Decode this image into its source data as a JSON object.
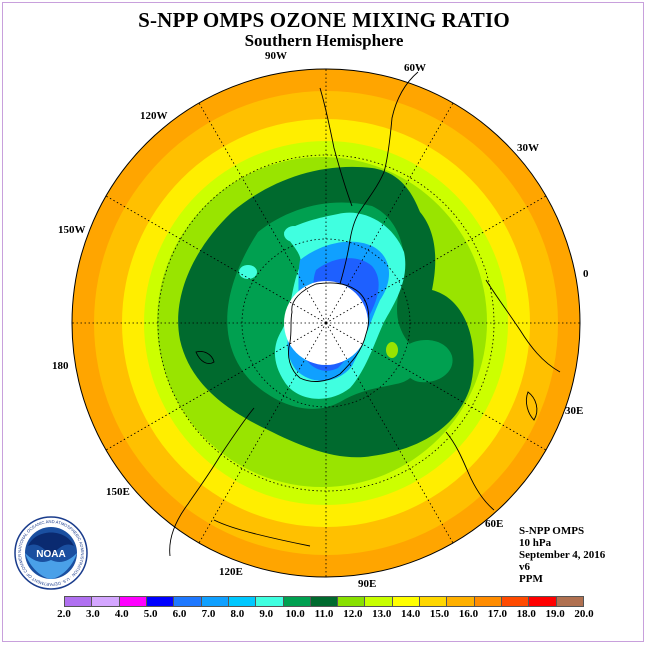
{
  "title": "S-NPP OMPS OZONE MIXING RATIO",
  "subtitle": "Southern Hemisphere",
  "longitude_labels": [
    "90W",
    "60W",
    "30W",
    "0",
    "30E",
    "60E",
    "90E",
    "120E",
    "150E",
    "180",
    "150W",
    "120W"
  ],
  "info": {
    "instrument": "S-NPP OMPS",
    "level": "10 hPa",
    "date": "September 4, 2016",
    "version": "v6",
    "units": "PPM"
  },
  "logo": {
    "text": "NOAA",
    "ring_text": "NATIONAL OCEANIC AND ATMOSPHERIC ADMINISTRATION · U.S. DEPARTMENT OF COMMERCE"
  },
  "colorbar": {
    "ticks": [
      "2.0",
      "3.0",
      "4.0",
      "5.0",
      "6.0",
      "7.0",
      "8.0",
      "9.0",
      "10.0",
      "11.0",
      "12.0",
      "13.0",
      "14.0",
      "15.0",
      "16.0",
      "17.0",
      "18.0",
      "19.0",
      "20.0"
    ],
    "colors": [
      "#b070f0",
      "#d4a6ff",
      "#ff00ff",
      "#0000ff",
      "#1e78ff",
      "#10a0ff",
      "#00c8ff",
      "#40ffe0",
      "#00a050",
      "#006a2e",
      "#88e000",
      "#c8ff00",
      "#ffff00",
      "#ffd700",
      "#ffb000",
      "#ff8c00",
      "#ff4a00",
      "#ff0000",
      "#b07050"
    ]
  },
  "map_colors": {
    "ring_outer": "#ffa500",
    "ring_2": "#ffc000",
    "ring_3": "#ffee00",
    "ring_4": "#ccff00",
    "ring_5": "#99e400",
    "dark_green": "#006a2e",
    "mid_green": "#00a050",
    "cyan": "#40ffe0",
    "light_blue": "#10a0ff",
    "blue": "#1e60ff",
    "pole_fill": "#ffffff"
  }
}
